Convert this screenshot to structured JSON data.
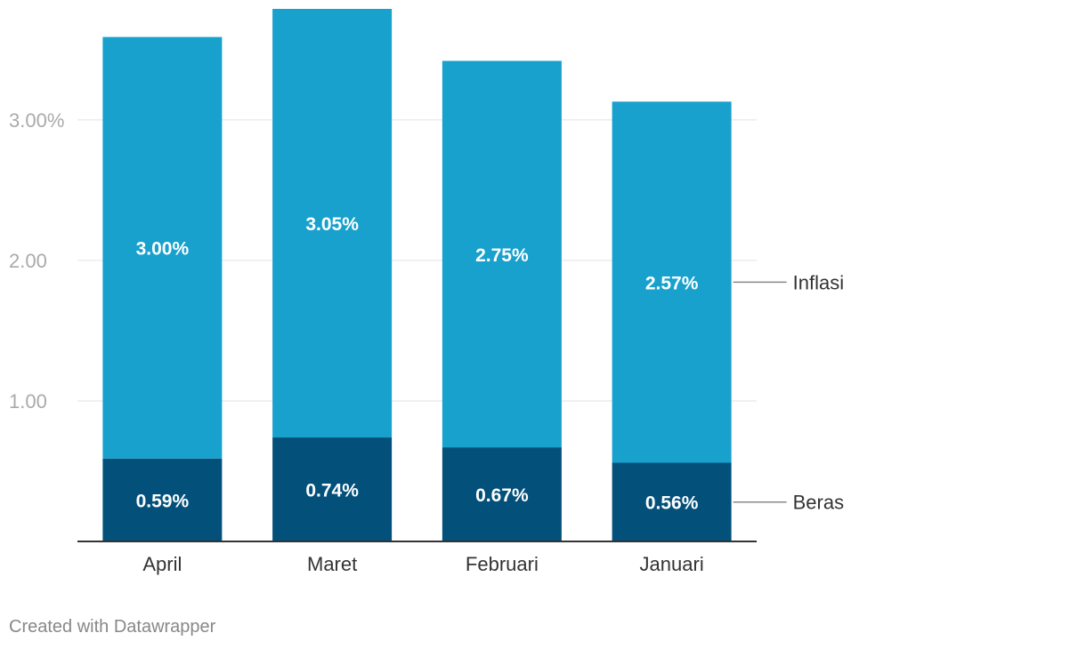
{
  "chart_data": {
    "type": "bar",
    "stacked": true,
    "categories": [
      "April",
      "Maret",
      "Februari",
      "Januari"
    ],
    "series": [
      {
        "name": "Beras",
        "values": [
          0.59,
          0.74,
          0.67,
          0.56
        ],
        "labels": [
          "0.59%",
          "0.74%",
          "0.67%",
          "0.56%"
        ],
        "color": "#03507a"
      },
      {
        "name": "Inflasi",
        "values": [
          3.0,
          3.05,
          2.75,
          2.57
        ],
        "labels": [
          "3.00%",
          "3.05%",
          "2.75%",
          "2.57%"
        ],
        "color": "#18a1cd"
      }
    ],
    "y_ticks": [
      {
        "value": 1,
        "label": "1.00"
      },
      {
        "value": 2,
        "label": "2.00"
      },
      {
        "value": 3,
        "label": "3.00%"
      }
    ],
    "ylim": [
      0,
      3.79
    ],
    "grid": true,
    "legend": "right, inline labels"
  },
  "footer": {
    "credit": "Created with Datawrapper"
  }
}
